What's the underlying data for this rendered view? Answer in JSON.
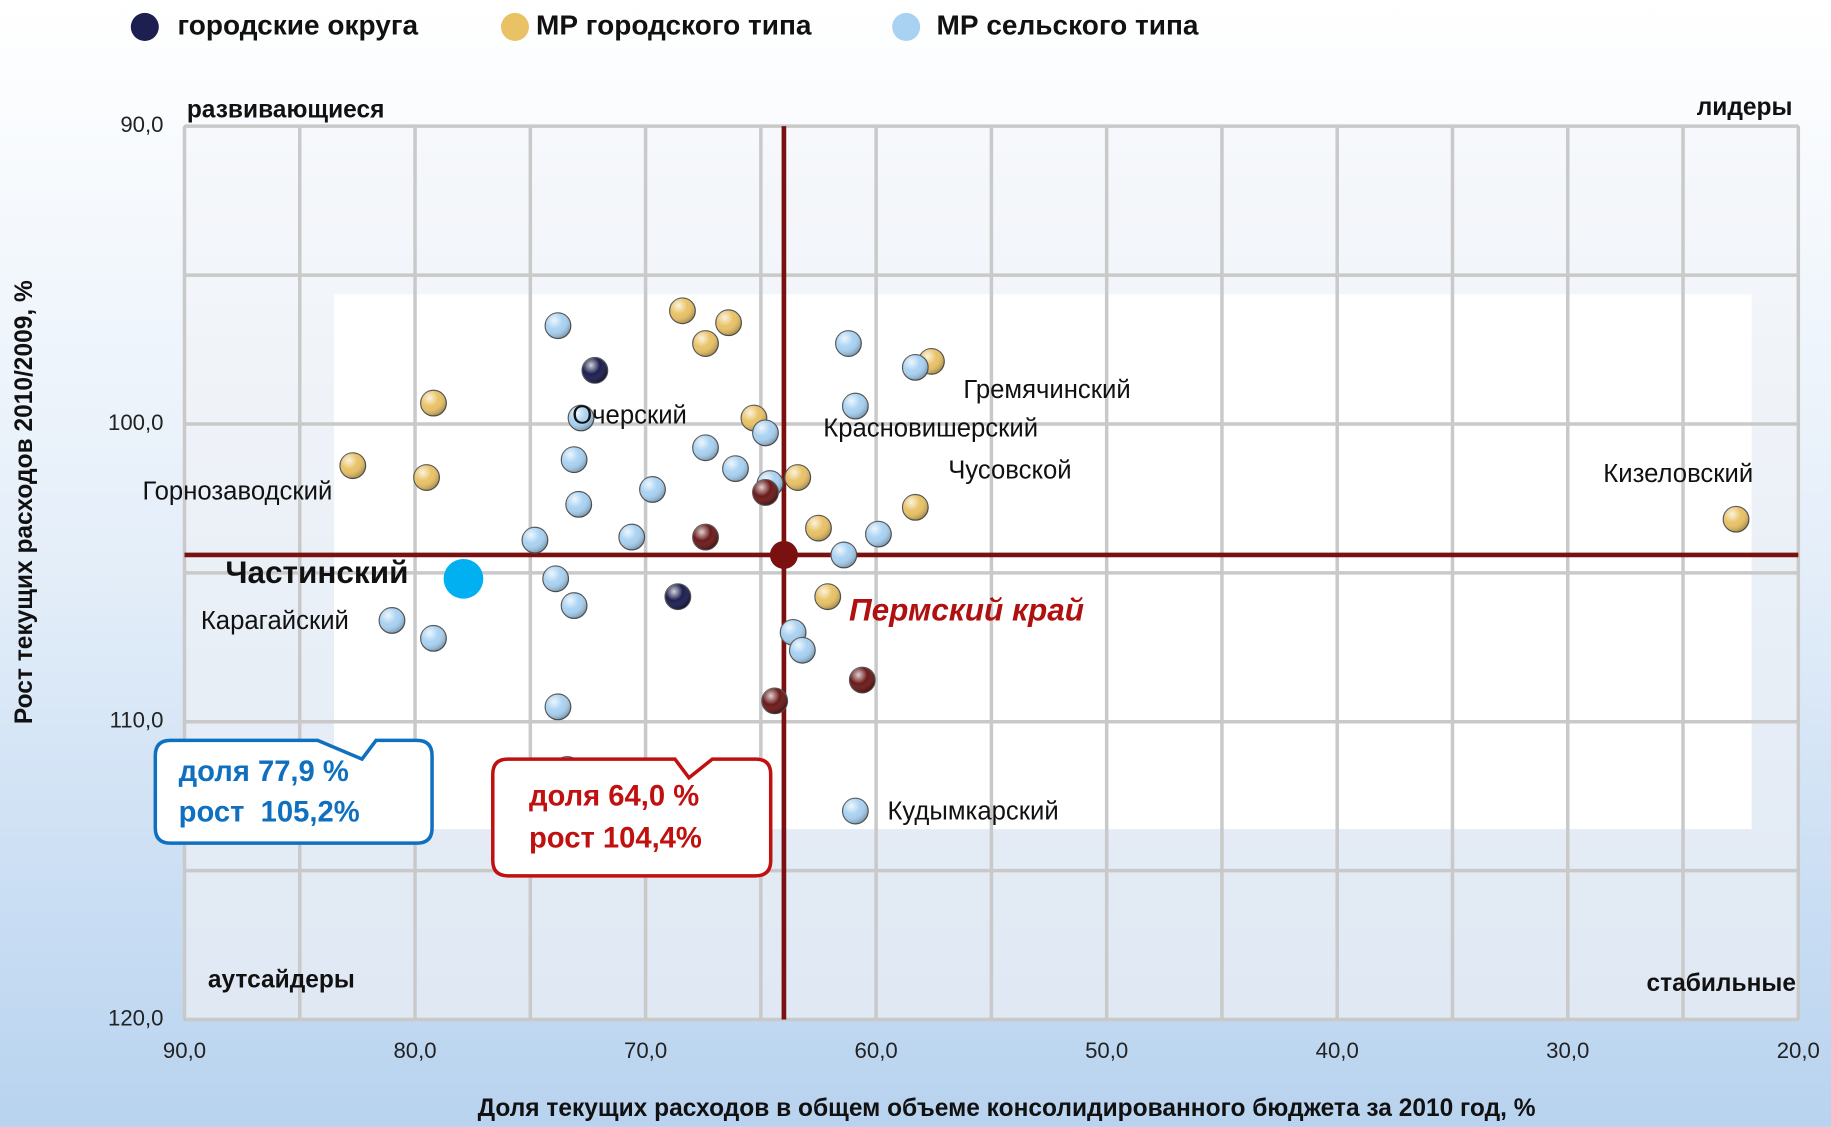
{
  "chart_data": {
    "type": "scatter",
    "x_label": "Доля текущих расходов в общем объеме консолидированного бюджета за 2010 год, %",
    "y_label": "Рост текущих расходов 2010/2009, %",
    "xlim": [
      90,
      20
    ],
    "ylim": [
      90,
      120
    ],
    "xticks": [
      {
        "value": 90,
        "label": "90,0"
      },
      {
        "value": 80,
        "label": "80,0"
      },
      {
        "value": 70,
        "label": "70,0"
      },
      {
        "value": 60,
        "label": "60,0"
      },
      {
        "value": 50,
        "label": "50,0"
      },
      {
        "value": 40,
        "label": "40,0"
      },
      {
        "value": 30,
        "label": "30,0"
      },
      {
        "value": 20,
        "label": "20,0"
      }
    ],
    "yticks": [
      {
        "value": 90,
        "label": "90,0"
      },
      {
        "value": 100,
        "label": "100,0"
      },
      {
        "value": 110,
        "label": "110,0"
      },
      {
        "value": 120,
        "label": "120,0"
      }
    ],
    "x_minor_ticks": [
      85,
      75,
      65,
      55,
      45,
      35,
      25
    ],
    "y_minor_ticks": [
      95,
      105,
      115
    ],
    "grid": true,
    "legend": "top",
    "series": [
      {
        "name": "городские округа",
        "color": "#1c1f4f",
        "x": [
          72.2,
          68.6
        ],
        "values": [
          98.2,
          105.8
        ]
      },
      {
        "name": "МР городского типа",
        "color": "#e9c266",
        "x": [
          68.4,
          66.4,
          67.4,
          57.6,
          79.2,
          82.7,
          79.5,
          65.3,
          63.4,
          58.3,
          62.5,
          62.1,
          22.7
        ],
        "values": [
          96.2,
          96.6,
          97.3,
          97.9,
          99.3,
          101.4,
          101.8,
          99.8,
          101.8,
          102.8,
          103.5,
          105.8,
          103.2
        ]
      },
      {
        "name": "МР сельского типа",
        "color": "#a9d2f2",
        "x": [
          73.8,
          61.2,
          58.3,
          60.9,
          72.8,
          64.8,
          67.4,
          73.1,
          66.1,
          69.7,
          64.6,
          72.9,
          70.6,
          74.8,
          59.9,
          61.4,
          73.9,
          73.1,
          81.0,
          79.2,
          63.6,
          63.2,
          73.8,
          73.4,
          60.9
        ],
        "values": [
          96.7,
          97.3,
          98.1,
          99.4,
          99.8,
          100.3,
          100.8,
          101.2,
          101.5,
          102.2,
          102.0,
          102.7,
          103.8,
          103.9,
          103.7,
          104.4,
          105.2,
          106.1,
          106.6,
          107.2,
          107.0,
          107.6,
          109.5,
          111.6,
          113.0
        ]
      },
      {
        "color": "#6b1a1a",
        "x": [
          67.4,
          64.8,
          60.6,
          64.4
        ],
        "values": [
          103.8,
          102.3,
          108.6,
          109.3
        ]
      }
    ],
    "highlight": {
      "name": "Частинский",
      "x": 77.9,
      "y": 105.2,
      "color": "#00b0f0",
      "callout": [
        "доля 77,9 %",
        "рост  105,2%"
      ]
    },
    "region": {
      "name": "Пермский край",
      "x": 64.0,
      "y": 104.4,
      "color": "#7a1010",
      "callout": [
        "доля 64,0 %",
        "рост 104,4%"
      ]
    },
    "point_labels": [
      "Очерский",
      "Гремячинский",
      "Красновишерский",
      "Чусовской",
      "Кизеловский",
      "Горнозаводский",
      "Карагайский",
      "Кудымкарский"
    ],
    "quadrants": [
      "развивающиеся",
      "лидеры",
      "аутсайдеры",
      "стабильные"
    ]
  }
}
